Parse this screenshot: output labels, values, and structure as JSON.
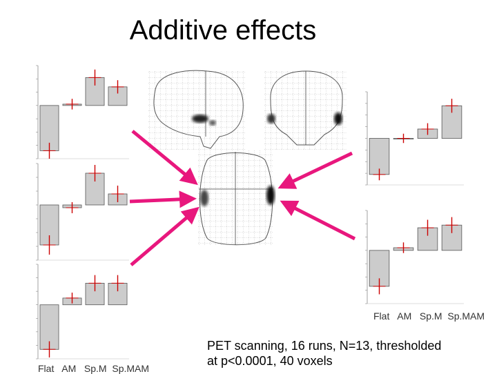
{
  "title": "Additive effects",
  "condition_labels": [
    "Flat",
    "AM",
    "Sp.M",
    "Sp.MAM"
  ],
  "bar_axis_label_text": "Flat   AM   Sp.M  Sp.MAM",
  "caption": {
    "line1": "PET scanning, 16 runs, N=13, thresholded",
    "line2": "at p<0.0001, 40 voxels"
  },
  "colors": {
    "arrow": "#e8177d",
    "bar_fill": "#cccccc",
    "errorbar": "#cc0000",
    "blob": "#222222"
  },
  "chart_data": [
    {
      "type": "bar",
      "panel": "left-top",
      "categories": [
        "Flat",
        "AM",
        "Sp.M",
        "Sp.MAM"
      ],
      "values": [
        -3.4,
        0.1,
        2.1,
        1.4
      ],
      "errors": [
        0.6,
        0.4,
        0.6,
        0.5
      ],
      "ylim": [
        -4,
        3
      ]
    },
    {
      "type": "bar",
      "panel": "left-middle",
      "categories": [
        "Flat",
        "AM",
        "Sp.M",
        "Sp.MAM"
      ],
      "values": [
        -2.9,
        -0.2,
        2.3,
        0.8
      ],
      "errors": [
        0.7,
        0.4,
        0.6,
        0.6
      ],
      "ylim": [
        -4,
        3
      ]
    },
    {
      "type": "bar",
      "panel": "left-bottom",
      "categories": [
        "Flat",
        "AM",
        "Sp.M",
        "Sp.MAM"
      ],
      "values": [
        -3.3,
        0.5,
        1.6,
        1.6
      ],
      "errors": [
        0.6,
        0.4,
        0.6,
        0.6
      ],
      "ylim": [
        -4,
        3
      ]
    },
    {
      "type": "bar",
      "panel": "right-top",
      "categories": [
        "Flat",
        "AM",
        "Sp.M",
        "Sp.MAM"
      ],
      "values": [
        -3.1,
        0.0,
        0.8,
        2.8
      ],
      "errors": [
        0.5,
        0.4,
        0.5,
        0.6
      ],
      "ylim": [
        -4,
        4
      ]
    },
    {
      "type": "bar",
      "panel": "right-bottom",
      "categories": [
        "Flat",
        "AM",
        "Sp.M",
        "Sp.MAM"
      ],
      "values": [
        -2.7,
        0.2,
        1.7,
        1.9
      ],
      "errors": [
        0.6,
        0.4,
        0.6,
        0.6
      ],
      "ylim": [
        -4,
        3
      ]
    }
  ]
}
